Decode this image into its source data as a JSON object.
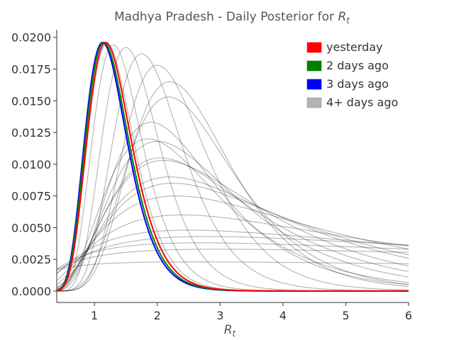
{
  "chart_data": {
    "type": "line",
    "title": "Madhya Pradesh - Daily Posterior for ",
    "title_symbol": "R",
    "title_symbol_sub": "t",
    "xlabel_symbol": "R",
    "xlabel_symbol_sub": "t",
    "xlim": [
      0.4,
      6.0
    ],
    "ylim": [
      -0.0009,
      0.0206
    ],
    "x_ticks": [
      1,
      2,
      3,
      4,
      5,
      6
    ],
    "x_tick_labels": [
      "1",
      "2",
      "3",
      "4",
      "5",
      "6"
    ],
    "y_ticks": [
      0,
      0.0025,
      0.005,
      0.0075,
      0.01,
      0.0125,
      0.015,
      0.0175,
      0.02
    ],
    "y_tick_labels": [
      "0.0000",
      "0.0025",
      "0.0050",
      "0.0075",
      "0.0100",
      "0.0125",
      "0.0150",
      "0.0175",
      "0.0200"
    ],
    "grid": false,
    "legend_position": "top-right",
    "legend": [
      {
        "label": "yesterday",
        "color": "#ff0000"
      },
      {
        "label": "2 days ago",
        "color": "#008000"
      },
      {
        "label": "3 days ago",
        "color": "#0000ff"
      },
      {
        "label": "4+ days ago",
        "color": "#b3b3b3"
      }
    ],
    "series": [
      {
        "group": "4+ days ago",
        "peak_x": 2.8,
        "peak_y": 0.0043,
        "width": 0.9
      },
      {
        "group": "4+ days ago",
        "peak_x": 2.7,
        "peak_y": 0.0038,
        "width": 1.05
      },
      {
        "group": "4+ days ago",
        "peak_x": 2.5,
        "peak_y": 0.0048,
        "width": 0.8
      },
      {
        "group": "4+ days ago",
        "peak_x": 3.0,
        "peak_y": 0.0033,
        "width": 1.2
      },
      {
        "group": "4+ days ago",
        "peak_x": 2.6,
        "peak_y": 0.0023,
        "width": 1.6
      },
      {
        "group": "4+ days ago",
        "peak_x": 2.4,
        "peak_y": 0.006,
        "width": 0.62
      },
      {
        "group": "4+ days ago",
        "peak_x": 2.3,
        "peak_y": 0.0075,
        "width": 0.52
      },
      {
        "group": "4+ days ago",
        "peak_x": 2.2,
        "peak_y": 0.009,
        "width": 0.44
      },
      {
        "group": "4+ days ago",
        "peak_x": 2.1,
        "peak_y": 0.0103,
        "width": 0.4
      },
      {
        "group": "4+ days ago",
        "peak_x": 2.0,
        "peak_y": 0.0118,
        "width": 0.35
      },
      {
        "group": "4+ days ago",
        "peak_x": 1.9,
        "peak_y": 0.0133,
        "width": 0.31
      },
      {
        "group": "4+ days ago",
        "peak_x": 1.85,
        "peak_y": 0.012,
        "width": 0.34
      },
      {
        "group": "4+ days ago",
        "peak_x": 2.05,
        "peak_y": 0.0105,
        "width": 0.38
      },
      {
        "group": "4+ days ago",
        "peak_x": 2.25,
        "peak_y": 0.0085,
        "width": 0.46
      },
      {
        "group": "4+ days ago",
        "peak_x": 2.2,
        "peak_y": 0.0165,
        "width": 0.25
      },
      {
        "group": "4+ days ago",
        "peak_x": 2.18,
        "peak_y": 0.0153,
        "width": 0.27
      },
      {
        "group": "4+ days ago",
        "peak_x": 2.0,
        "peak_y": 0.0178,
        "width": 0.23
      },
      {
        "group": "4+ days ago",
        "peak_x": 1.75,
        "peak_y": 0.0187,
        "width": 0.22
      },
      {
        "group": "4+ days ago",
        "peak_x": 1.5,
        "peak_y": 0.0192,
        "width": 0.21
      },
      {
        "group": "4+ days ago",
        "peak_x": 1.3,
        "peak_y": 0.0194,
        "width": 0.21
      },
      {
        "group": "4+ days ago",
        "peak_x": 1.2,
        "peak_y": 0.0195,
        "width": 0.21
      },
      {
        "group": "3 days ago",
        "peak_x": 1.13,
        "peak_y": 0.0196,
        "width": 0.205,
        "color": "#0000ff"
      },
      {
        "group": "2 days ago",
        "peak_x": 1.15,
        "peak_y": 0.0196,
        "width": 0.205,
        "color": "#008000"
      },
      {
        "group": "yesterday",
        "peak_x": 1.18,
        "peak_y": 0.0196,
        "width": 0.205,
        "color": "#ff0000"
      }
    ]
  }
}
